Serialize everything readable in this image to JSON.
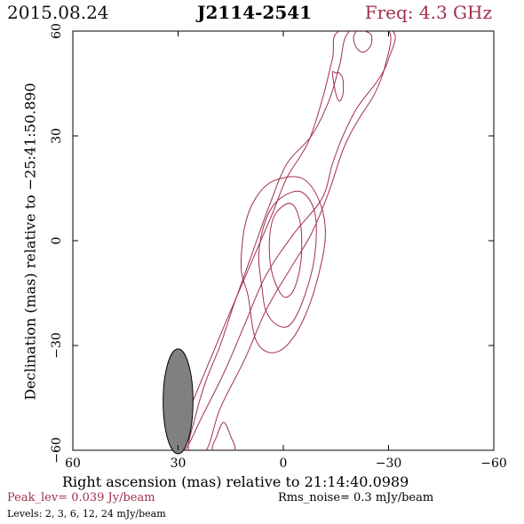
{
  "header": {
    "date": "2015.08.24",
    "source": "J2114-2541",
    "frequency": "Freq: 4.3 GHz"
  },
  "footer": {
    "peak": "Peak_lev=  0.039 Jy/beam",
    "rms": "Rms_noise=  0.3 mJy/beam",
    "levels": "Levels:   2,   3,   6,  12,  24 mJy/beam"
  },
  "colors": {
    "contour": "#a0304a",
    "beam": "#808080",
    "axis": "#000000"
  },
  "chart_data": {
    "type": "contour",
    "xlabel": "Right ascension (mas) relative to 21:14:40.0989",
    "ylabel": "Declination (mas) relative to −25:41:50.890",
    "xlim": [
      60,
      -60
    ],
    "ylim": [
      -60,
      60
    ],
    "xticks": [
      60,
      30,
      0,
      -30,
      -60
    ],
    "xtick_labels": [
      "60",
      "30",
      "0",
      "−30",
      "−60"
    ],
    "yticks": [
      -60,
      -30,
      0,
      30,
      60
    ],
    "ytick_labels": [
      "−60",
      "−30",
      "0",
      "30",
      "60"
    ],
    "levels_mJy": [
      2,
      3,
      6,
      12,
      24
    ],
    "peak_Jy_per_beam": 0.039,
    "rms_mJy_per_beam": 0.3,
    "beam": {
      "x": 30,
      "y": -46,
      "major": 30,
      "minor": 8.5,
      "pa_deg": 0
    },
    "contours": [
      {
        "level": 2,
        "points": [
          [
            -16,
            60
          ],
          [
            -14,
            52
          ],
          [
            -11,
            40
          ],
          [
            -7,
            28
          ],
          [
            -1,
            18
          ],
          [
            3,
            8
          ],
          [
            9,
            -6
          ],
          [
            15,
            -20
          ],
          [
            20,
            -32
          ],
          [
            25,
            -44
          ],
          [
            29,
            -54
          ],
          [
            31,
            -60
          ],
          [
            28,
            -60
          ],
          [
            23,
            -50
          ],
          [
            17,
            -38
          ],
          [
            11,
            -24
          ],
          [
            5,
            -10
          ],
          [
            -3,
            2
          ],
          [
            -11,
            12
          ],
          [
            -14,
            22
          ],
          [
            -17,
            30
          ],
          [
            -21,
            38
          ],
          [
            -27,
            46
          ],
          [
            -30,
            52
          ],
          [
            -31,
            60
          ]
        ]
      },
      {
        "level": 3,
        "points": [
          [
            -19,
            60
          ],
          [
            -16,
            50
          ],
          [
            -13,
            40
          ],
          [
            -8,
            30
          ],
          [
            -1,
            22
          ],
          [
            4,
            10
          ],
          [
            9,
            -4
          ],
          [
            14,
            -18
          ],
          [
            18,
            -30
          ],
          [
            22,
            -40
          ],
          [
            25,
            -50
          ],
          [
            27,
            -60
          ],
          [
            22,
            -60
          ],
          [
            18,
            -48
          ],
          [
            11,
            -34
          ],
          [
            5,
            -20
          ],
          [
            -2,
            -8
          ],
          [
            -8,
            2
          ],
          [
            -13,
            14
          ],
          [
            -17,
            26
          ],
          [
            -21,
            34
          ],
          [
            -26,
            42
          ],
          [
            -29,
            50
          ],
          [
            -30,
            60
          ]
        ]
      },
      {
        "level": 6,
        "points": [
          [
            10,
            -16
          ],
          [
            12,
            -8
          ],
          [
            11,
            4
          ],
          [
            8,
            12
          ],
          [
            3,
            17
          ],
          [
            -5,
            18
          ],
          [
            -10,
            12
          ],
          [
            -12,
            2
          ],
          [
            -10,
            -10
          ],
          [
            -6,
            -22
          ],
          [
            -1,
            -30
          ],
          [
            4,
            -32
          ],
          [
            8,
            -28
          ]
        ]
      },
      {
        "level": 6,
        "points": [
          [
            17,
            -52
          ],
          [
            19,
            -56
          ],
          [
            20,
            -60
          ],
          [
            14,
            -60
          ],
          [
            15,
            -56
          ]
        ]
      },
      {
        "level": 12,
        "points": [
          [
            6,
            -14
          ],
          [
            7,
            -4
          ],
          [
            5,
            6
          ],
          [
            1,
            12
          ],
          [
            -5,
            14
          ],
          [
            -9,
            8
          ],
          [
            -9,
            -4
          ],
          [
            -6,
            -16
          ],
          [
            -2,
            -24
          ],
          [
            2,
            -24
          ],
          [
            5,
            -20
          ]
        ]
      },
      {
        "level": 24,
        "points": [
          [
            3,
            -10
          ],
          [
            4,
            -2
          ],
          [
            3,
            6
          ],
          [
            0,
            10
          ],
          [
            -3,
            10
          ],
          [
            -5,
            4
          ],
          [
            -5,
            -6
          ],
          [
            -3,
            -14
          ],
          [
            0,
            -16
          ]
        ]
      },
      {
        "level": 3,
        "points": [
          [
            -14,
            48
          ],
          [
            -15,
            42
          ],
          [
            -16,
            40
          ],
          [
            -17,
            42
          ],
          [
            -17,
            46
          ],
          [
            -16,
            48
          ],
          [
            -15,
            48
          ]
        ]
      },
      {
        "level": 3,
        "points": [
          [
            -20,
            58
          ],
          [
            -21,
            55
          ],
          [
            -23,
            54
          ],
          [
            -25,
            56
          ],
          [
            -25,
            59
          ],
          [
            -23,
            60
          ],
          [
            -21,
            60
          ]
        ]
      }
    ]
  }
}
